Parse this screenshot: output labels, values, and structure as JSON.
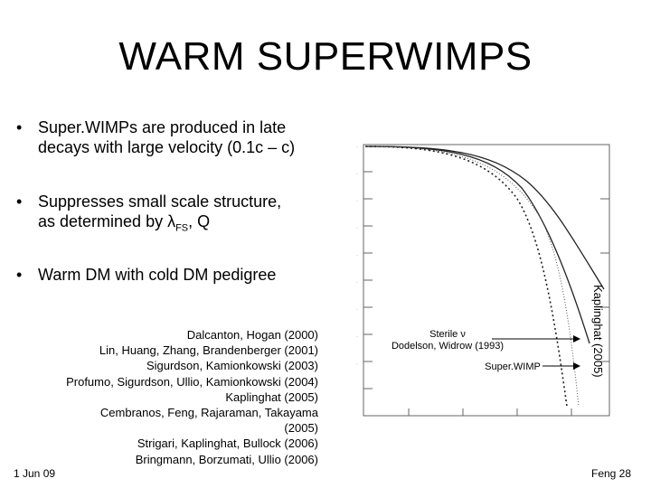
{
  "title": "WARM SUPERWIMPS",
  "bullets": [
    {
      "line1": "Super.WIMPs are produced in late",
      "line2": "decays with large velocity (0.1c – c)"
    },
    {
      "line1": "Suppresses small scale structure,",
      "line2_pre": "as determined by ",
      "lambda": "λ",
      "sub": "FS",
      "line2_post": ", Q"
    },
    {
      "line1": "Warm DM with cold DM pedigree"
    }
  ],
  "bullet_symbol": "•",
  "references": [
    "Dalcanton, Hogan (2000)",
    "Lin, Huang, Zhang, Brandenberger (2001)",
    "Sigurdson, Kamionkowski (2003)",
    "Profumo, Sigurdson, Ullio, Kamionkowski (2004)",
    "Kaplinghat (2005)",
    "Cembranos, Feng, Rajaraman, Takayama",
    "(2005)",
    "Strigari, Kaplinghat, Bullock (2006)",
    "Bringmann, Borzumati, Ullio (2006)"
  ],
  "plot": {
    "annotation_sterile_1": "Sterile ν",
    "annotation_sterile_2": "Dodelson, Widrow (1993)",
    "annotation_superwimp": "Super.WIMP",
    "side_label": "Kaplinghat (2005)"
  },
  "footer": {
    "date": "1 Jun 09",
    "page": "Feng 28"
  }
}
